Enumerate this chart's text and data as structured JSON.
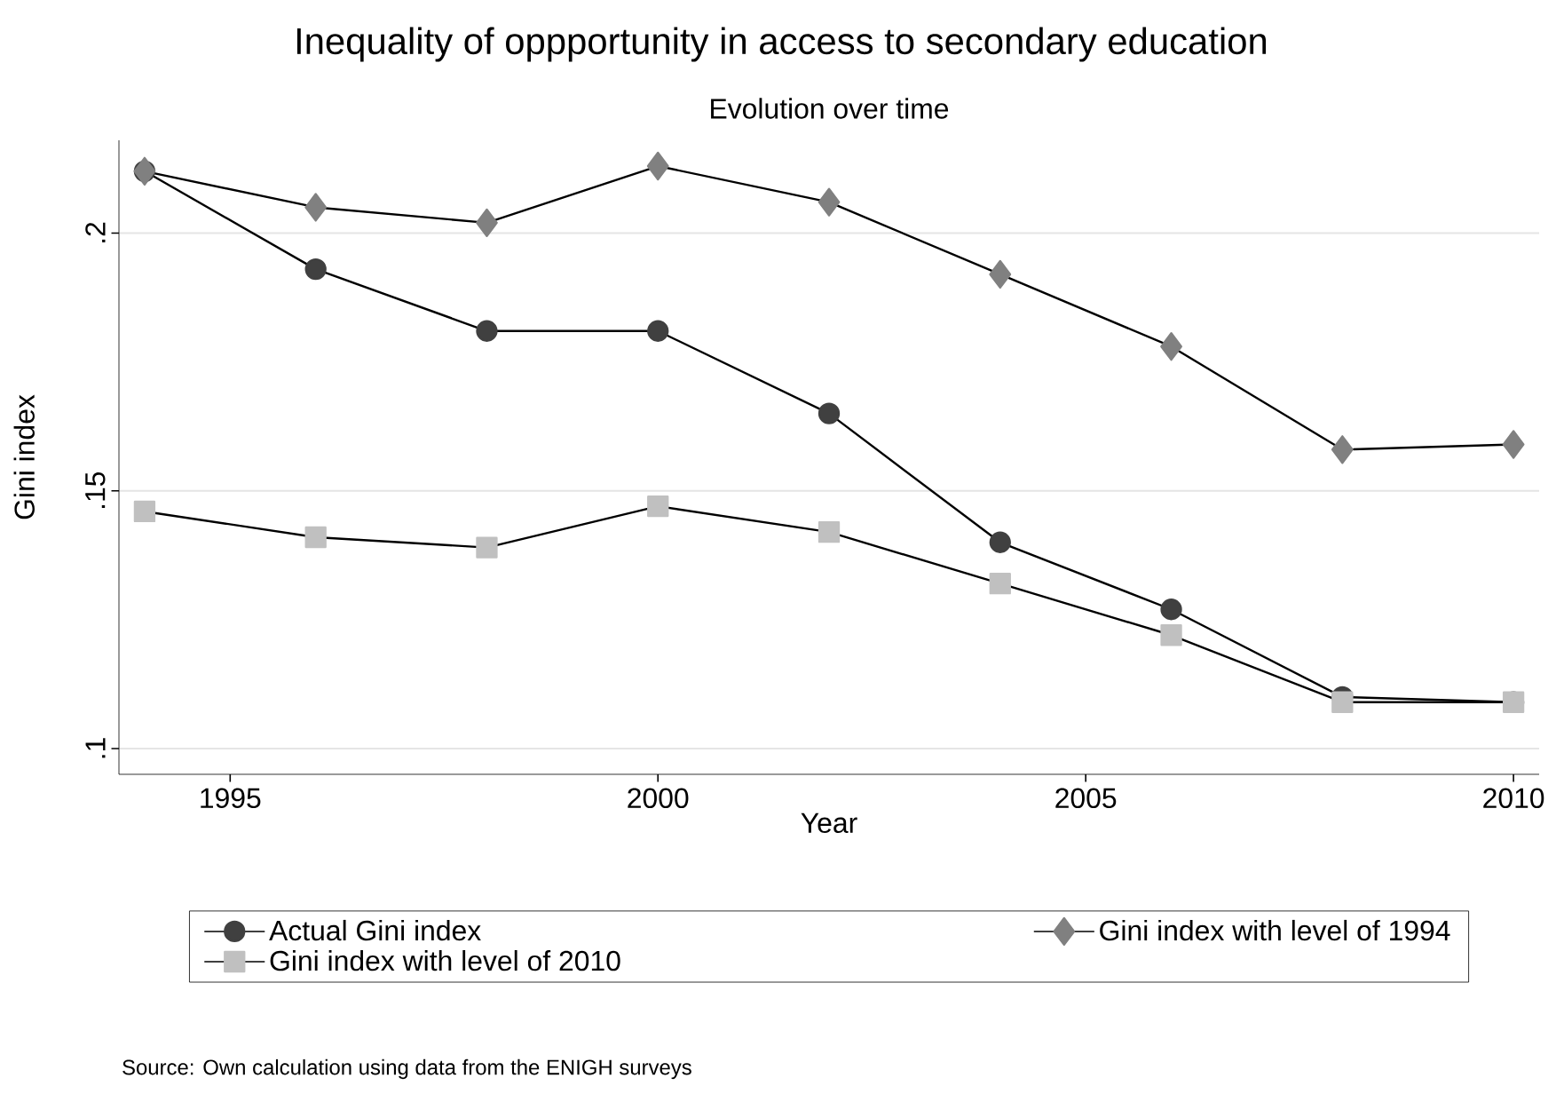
{
  "chart_data": {
    "type": "line",
    "title": "Inequality of oppportunity in access to secondary education",
    "subtitle": "Evolution over time",
    "xlabel": "Year",
    "ylabel": "Gini index",
    "x": [
      1994,
      1996,
      1998,
      2000,
      2002,
      2004,
      2006,
      2008,
      2010
    ],
    "series": [
      {
        "name": "Actual Gini index",
        "color": "#404040",
        "marker": "circle",
        "values": [
          0.212,
          0.193,
          0.181,
          0.181,
          0.165,
          0.14,
          0.127,
          0.11,
          0.109
        ]
      },
      {
        "name": "Gini index with level of 1994",
        "color": "#808080",
        "marker": "diamond",
        "values": [
          0.212,
          0.205,
          0.202,
          0.213,
          0.206,
          0.192,
          0.178,
          0.158,
          0.159
        ]
      },
      {
        "name": "Gini index with level of 2010",
        "color": "#c0c0c0",
        "marker": "square",
        "values": [
          0.146,
          0.141,
          0.139,
          0.147,
          0.142,
          0.132,
          0.122,
          0.109,
          0.109
        ]
      }
    ],
    "xlim": [
      1993.7,
      2010.3
    ],
    "ylim": [
      0.095,
      0.218
    ],
    "xticks": [
      1995,
      2000,
      2005,
      2010
    ],
    "yticks": [
      {
        "value": 0.1,
        "label": ".1"
      },
      {
        "value": 0.15,
        "label": ".15"
      },
      {
        "value": 0.2,
        "label": ".2"
      }
    ],
    "grid": "y",
    "legend": "bottom",
    "line_style": "solid",
    "annotations": [
      "Source: Own calculation using data from the ENIGH surveys"
    ]
  }
}
